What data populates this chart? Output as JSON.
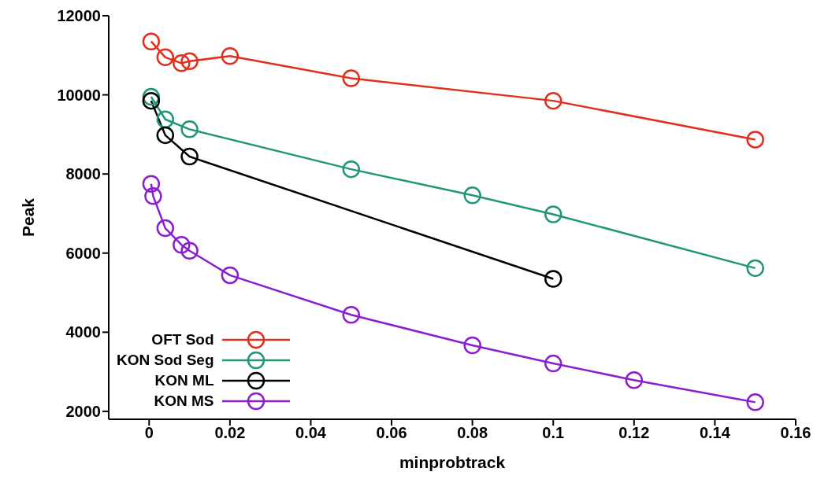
{
  "chart_data": {
    "type": "line",
    "xlabel": "minprobtrack",
    "ylabel": "Peak",
    "xlim": [
      -0.01,
      0.16
    ],
    "ylim": [
      1800,
      12000
    ],
    "xticks": [
      0,
      0.02,
      0.04,
      0.06,
      0.08,
      0.1,
      0.12,
      0.14,
      0.16
    ],
    "yticks": [
      2000,
      4000,
      6000,
      8000,
      10000,
      12000
    ],
    "grid": false,
    "legend": "bottom left",
    "marker": "circle",
    "line_style": "solid",
    "series": [
      {
        "name": "OFT Sod",
        "color": "#e0301e",
        "x": [
          0.0005,
          0.004,
          0.008,
          0.01,
          0.02,
          0.05,
          0.1,
          0.15
        ],
        "values": [
          11350,
          10950,
          10800,
          10850,
          10980,
          10420,
          9850,
          8870
        ]
      },
      {
        "name": "KON Sod Seg",
        "color": "#21967a",
        "x": [
          0.0005,
          0.004,
          0.01,
          0.05,
          0.08,
          0.1,
          0.15
        ],
        "values": [
          9950,
          9380,
          9130,
          8120,
          7460,
          6980,
          5620
        ]
      },
      {
        "name": "KON ML",
        "color": "#000000",
        "x": [
          0.0005,
          0.004,
          0.01,
          0.1
        ],
        "values": [
          9850,
          8980,
          8440,
          5350
        ]
      },
      {
        "name": "KON MS",
        "color": "#8a1fd0",
        "x": [
          0.0005,
          0.001,
          0.004,
          0.008,
          0.01,
          0.02,
          0.05,
          0.08,
          0.1,
          0.12,
          0.15
        ],
        "values": [
          7750,
          7440,
          6630,
          6210,
          6060,
          5440,
          4440,
          3670,
          3210,
          2790,
          2230
        ]
      }
    ]
  }
}
